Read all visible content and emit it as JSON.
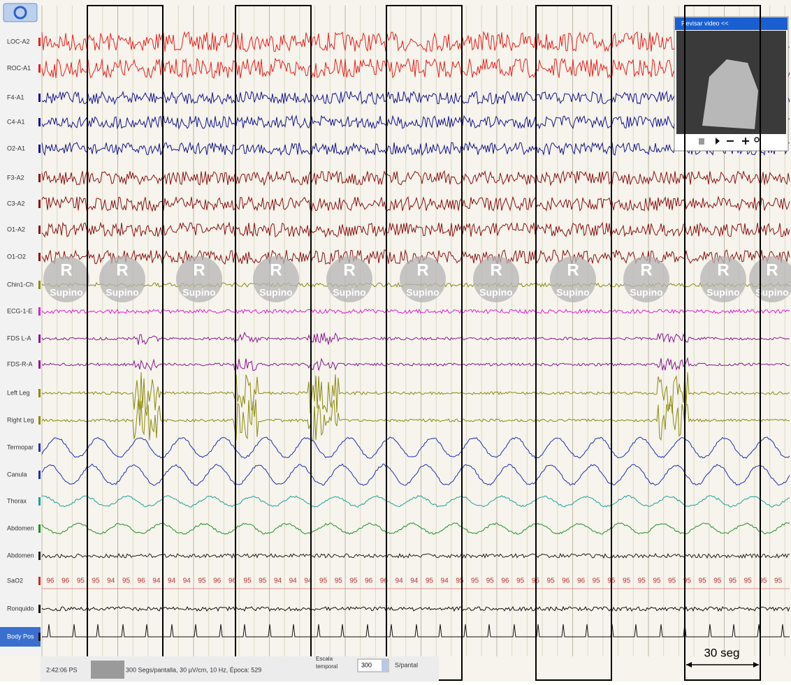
{
  "channels": [
    {
      "label": "LOC-A2",
      "color": "#e8201c"
    },
    {
      "label": "ROC-A1",
      "color": "#e8201c"
    },
    {
      "label": "F4-A1",
      "color": "#14148a"
    },
    {
      "label": "C4-A1",
      "color": "#14148a"
    },
    {
      "label": "O2-A1",
      "color": "#14148a"
    },
    {
      "label": "F3-A2",
      "color": "#8a1010"
    },
    {
      "label": "C3-A2",
      "color": "#8a1010"
    },
    {
      "label": "O1-A2",
      "color": "#8a1010"
    },
    {
      "label": "O1-O2",
      "color": "#8a1010"
    },
    {
      "label": "Chin1-Ch",
      "color": "#8c8a10"
    },
    {
      "label": "ECG-1-E",
      "color": "#e020d0"
    },
    {
      "label": "FDS L-A",
      "color": "#8a1890"
    },
    {
      "label": "FDS-R-A",
      "color": "#8a1890"
    },
    {
      "label": "Left Leg",
      "color": "#8c8a10"
    },
    {
      "label": "Right Leg",
      "color": "#8c8a10"
    },
    {
      "label": "Termopar",
      "color": "#2030b0"
    },
    {
      "label": "Canula",
      "color": "#2030b0"
    },
    {
      "label": "Thorax",
      "color": "#20a0a0"
    },
    {
      "label": "Abdomen",
      "color": "#20902a"
    },
    {
      "label": "Abdomen",
      "color": "#202020"
    },
    {
      "label": "SaO2",
      "color": "#c03030"
    },
    {
      "label": "Ronquido",
      "color": "#101010"
    },
    {
      "label": "Body Pos",
      "color": "#101010"
    }
  ],
  "sao2_values": [
    96,
    96,
    95,
    95,
    94,
    95,
    96,
    94,
    94,
    94,
    95,
    96,
    96,
    95,
    95,
    94,
    94,
    94,
    95,
    95,
    95,
    96,
    96,
    94,
    94,
    95,
    94,
    95,
    95,
    95,
    96,
    95,
    95,
    95,
    96,
    96,
    95,
    95,
    95,
    95,
    95,
    95,
    95,
    95,
    95,
    95,
    95,
    95,
    95
  ],
  "position_marker": {
    "letter": "R",
    "label": "Supino"
  },
  "video_panel": {
    "title": "Revisar video <<"
  },
  "annotation": "30 seg",
  "status_bar": {
    "time": "2:42:06 PS",
    "info": "300 Segs/pantalla, 30 µV/cm, 10 Hz, Época: 529",
    "scale_label": "Escala temporal",
    "scale_value": "300",
    "scale_unit": "S/pantal"
  }
}
